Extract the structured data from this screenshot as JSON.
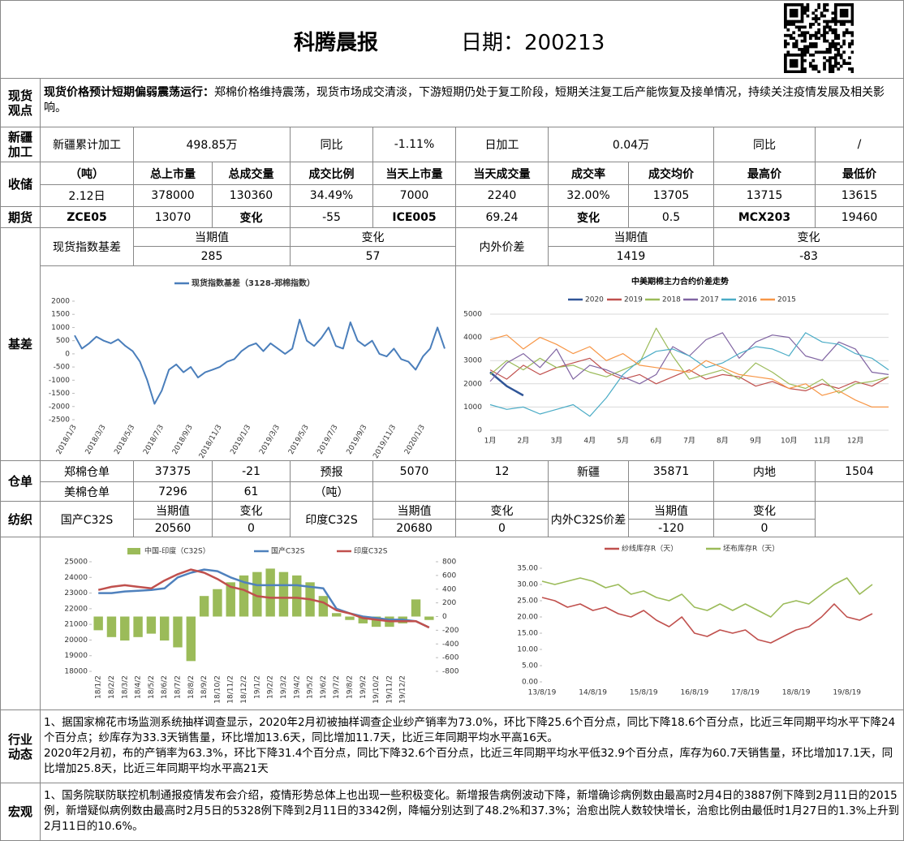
{
  "header": {
    "title": "科腾晨报",
    "date": "日期：200213"
  },
  "labels": [
    "现货观点",
    "新疆加工",
    "收储",
    "期货",
    "基差",
    "仓单",
    "纺织",
    "行业动态",
    "宏观"
  ],
  "views": {
    "heading": "现货价格预计短期偏弱震荡运行：",
    "text": "郑棉价格维持震荡，现货市场成交清淡，下游短期仍处于复工阶段，短期关注复工后产能恢复及接单情况，持续关注疫情发展及相关影响。"
  },
  "table": {
    "xinjiang": [
      "新疆累计加工",
      "498.85万",
      "同比",
      "-1.11%",
      "日加工",
      "0.04万",
      "同比",
      "/"
    ],
    "storage_header": [
      "（吨）",
      "总上市量",
      "总成交量",
      "成交比例",
      "当天上市量",
      "当天成交量",
      "成交率",
      "成交均价",
      "最高价",
      "最低价"
    ],
    "storage_row": [
      "2.12日",
      "378000",
      "130360",
      "34.49%",
      "7000",
      "2240",
      "32.00%",
      "13705",
      "13715",
      "13615"
    ],
    "futures": [
      "ZCE05",
      "13070",
      "变化",
      "-55",
      "ICE005",
      "69.24",
      "变化",
      "0.5",
      "MCX203",
      "19460"
    ],
    "spot_basis": [
      "现货指数基差",
      "当期值",
      "变化",
      "285",
      "57",
      "内外价差",
      "当期值",
      "变化",
      "1419",
      "-83"
    ],
    "warehouse_1": [
      "郑棉仓单",
      "37375",
      "-21",
      "预报",
      "5070",
      "12",
      "新疆",
      "35871",
      "内地",
      "1504"
    ],
    "warehouse_2": [
      "美棉仓单",
      "7296",
      "61",
      "（吨）"
    ],
    "textile": [
      "国产C32S",
      "当期值",
      "变化",
      "20560",
      "0",
      "印度C32S",
      "当期值",
      "变化",
      "20680",
      "0",
      "内外C32S价差",
      "当期值",
      "变化",
      "-120",
      "0"
    ]
  },
  "industry": [
    "1、据国家棉花市场监测系统抽样调查显示，2020年2月初被抽样调查企业纱产销率为73.0%，环比下降25.6个百分点，同比下降18.6个百分点，比近三年同期平均水平下降24个百分点；纱库存为33.3天销售量，环比增加13.6天，同比增加11.7天，比近三年同期平均水平高16天。",
    "2020年2月初，布的产销率为63.3%，环比下降31.4个百分点，同比下降32.6个百分点，比近三年同期平均水平低32.9个百分点，库存为60.7天销售量，环比增加17.1天，同比增加25.8天，比近三年同期平均水平高21天"
  ],
  "macro": "1、国务院联防联控机制通报疫情发布会介绍，疫情形势总体上也出现一些积极变化。新增报告病例波动下降，新增确诊病例数由最高时2月4日的3887例下降到2月11日的2015例，新增疑似病例数由最高时2月5日的5328例下降到2月11日的3342例，降幅分别达到了48.2%和37.3%；治愈出院人数较快增长，治愈比例由最低时1月27日的1.3%上升到2月11日的10.6%。",
  "chart_data": [
    {
      "type": "line",
      "categories": [
        "2018/1/3",
        null,
        null,
        null,
        "2018/3/3",
        null,
        null,
        null,
        "2018/5/3",
        null,
        null,
        null,
        "2018/7/3",
        null,
        null,
        null,
        "2018/9/3",
        null,
        null,
        null,
        "2018/11/3",
        null,
        null,
        null,
        "2019/1/3",
        null,
        null,
        null,
        "2019/3/3",
        null,
        null,
        null,
        "2019/5/3",
        null,
        null,
        null,
        "2019/7/3",
        null,
        null,
        null,
        "2019/9/3",
        null,
        null,
        null,
        "2019/11/3",
        null,
        null,
        null,
        "2020/1/3",
        null,
        null,
        null
      ],
      "series": [
        {
          "name": "现货指数基差（3128-郑棉指数）",
          "color": "#4a7ebb",
          "values": [
            700,
            200,
            400,
            650,
            500,
            400,
            550,
            300,
            100,
            -300,
            -1000,
            -1900,
            -1400,
            -600,
            -400,
            -700,
            -500,
            -900,
            -700,
            -600,
            -500,
            -300,
            -200,
            100,
            300,
            400,
            100,
            400,
            200,
            0,
            200,
            1300,
            500,
            300,
            600,
            1000,
            300,
            200,
            1200,
            500,
            300,
            500,
            0,
            -100,
            200,
            -200,
            -300,
            -600,
            -100,
            200,
            1000,
            200
          ]
        }
      ],
      "ylim": [
        -2500,
        2000
      ],
      "yticks": [
        2000,
        1500,
        1000,
        500,
        0,
        -500,
        -1000,
        -1500,
        -2000,
        -2500
      ],
      "grid": false
    },
    {
      "type": "line",
      "title": "中美期棉主力合约价差走势",
      "categories": [
        "1月",
        null,
        "2月",
        null,
        "3月",
        null,
        "4月",
        null,
        "5月",
        null,
        "6月",
        null,
        "7月",
        null,
        "8月",
        null,
        "9月",
        null,
        "10月",
        null,
        "11月",
        null,
        "12月",
        null,
        null
      ],
      "series": [
        {
          "name": "2020",
          "color": "#2f5597",
          "values": [
            2500,
            1900,
            1500,
            null,
            null,
            null,
            null,
            null,
            null,
            null,
            null,
            null,
            null,
            null,
            null,
            null,
            null,
            null,
            null,
            null,
            null,
            null,
            null,
            null,
            null
          ]
        },
        {
          "name": "2019",
          "color": "#c0504d",
          "values": [
            2600,
            2200,
            2800,
            2400,
            2700,
            2900,
            3100,
            2500,
            2200,
            2400,
            2000,
            2300,
            2600,
            2200,
            2400,
            2300,
            1900,
            2100,
            1800,
            1700,
            2000,
            1800,
            2100,
            1900,
            2300
          ]
        },
        {
          "name": "2018",
          "color": "#9bbb59",
          "values": [
            2400,
            3000,
            2600,
            3100,
            2700,
            2800,
            2500,
            2300,
            2600,
            2900,
            4400,
            3200,
            2200,
            2400,
            2600,
            2200,
            2900,
            2500,
            2000,
            1800,
            2200,
            1600,
            2000,
            2100,
            2300
          ]
        },
        {
          "name": "2017",
          "color": "#8064a2",
          "values": [
            2100,
            2900,
            3300,
            2700,
            3500,
            2200,
            2800,
            2600,
            2300,
            2000,
            2400,
            3600,
            3200,
            3900,
            4200,
            3100,
            3800,
            4100,
            4000,
            3200,
            3000,
            3800,
            3500,
            2500,
            2400
          ]
        },
        {
          "name": "2016",
          "color": "#4bacc6",
          "values": [
            1100,
            900,
            1000,
            700,
            900,
            1100,
            600,
            1400,
            2400,
            3000,
            3400,
            3500,
            3200,
            2700,
            2900,
            3300,
            3600,
            3500,
            3200,
            4200,
            3800,
            3700,
            3300,
            3100,
            2600
          ]
        },
        {
          "name": "2015",
          "color": "#f79646",
          "values": [
            3900,
            4100,
            3500,
            4000,
            3700,
            3300,
            3600,
            3000,
            3300,
            2800,
            2700,
            2600,
            2500,
            3000,
            2700,
            2400,
            2300,
            2200,
            1800,
            2000,
            1500,
            1700,
            1300,
            1000,
            1000
          ]
        }
      ],
      "ylim": [
        0,
        5000
      ],
      "yticks": [
        0,
        1000,
        2000,
        3000,
        4000,
        5000
      ],
      "grid": true
    },
    {
      "type": "combo",
      "categories": [
        "18/1/2",
        "18/2/2",
        "18/3/2",
        "18/4/2",
        "18/5/2",
        "18/6/2",
        "18/7/2",
        "18/8/2",
        "18/9/2",
        "18/10/2",
        "18/11/2",
        "18/12/2",
        "19/1/2",
        "19/2/2",
        "19/3/2",
        "19/4/2",
        "19/5/2",
        "19/6/2",
        "19/7/2",
        "19/8/2",
        "19/9/2",
        "19/10/2",
        "19/11/2",
        "19/12/2",
        null,
        null
      ],
      "series": [
        {
          "name": "中国-印度（C32S）",
          "type": "bar",
          "axis": "y2",
          "color": "#9bbb59",
          "values": [
            -200,
            -300,
            -350,
            -300,
            -250,
            -350,
            -450,
            -650,
            300,
            400,
            500,
            600,
            650,
            700,
            650,
            600,
            500,
            300,
            50,
            -50,
            -100,
            -150,
            -150,
            -100,
            250,
            -50
          ]
        },
        {
          "name": "国产C32S",
          "type": "line",
          "color": "#4f81bd",
          "values": [
            23000,
            23000,
            23100,
            23150,
            23200,
            23300,
            24000,
            24300,
            24500,
            24400,
            24000,
            23700,
            23500,
            23500,
            23500,
            23500,
            23400,
            23300,
            22000,
            21700,
            21500,
            21400,
            21300,
            21300,
            21200,
            20800
          ]
        },
        {
          "name": "印度C32S",
          "type": "line",
          "color": "#c0504d",
          "values": [
            23200,
            23400,
            23500,
            23400,
            23300,
            23800,
            24200,
            24500,
            24300,
            23900,
            23400,
            23200,
            22800,
            22700,
            22700,
            22700,
            22600,
            22400,
            21900,
            21700,
            21400,
            21300,
            21200,
            21200,
            21200,
            20800
          ]
        }
      ],
      "ylim": [
        18000,
        25000
      ],
      "yticks": [
        18000,
        19000,
        20000,
        21000,
        22000,
        23000,
        24000,
        25000
      ],
      "y2lim": [
        -800,
        800
      ],
      "y2ticks": [
        -800,
        -600,
        -400,
        -200,
        0,
        200,
        400,
        600,
        800
      ],
      "grid": false
    },
    {
      "type": "line",
      "categories": [
        "13/8/19",
        null,
        null,
        null,
        "14/8/19",
        null,
        null,
        null,
        "15/8/19",
        null,
        null,
        null,
        "16/8/19",
        null,
        null,
        null,
        "17/8/19",
        null,
        null,
        null,
        "18/8/19",
        null,
        null,
        null,
        "19/8/19",
        null,
        null
      ],
      "series": [
        {
          "name": "纱线库存R（天）",
          "color": "#c0504d",
          "values": [
            26,
            25,
            23,
            24,
            22,
            23,
            21,
            20,
            22,
            19,
            17,
            20,
            15,
            14,
            16,
            15,
            16,
            13,
            12,
            14,
            16,
            17,
            20,
            24,
            20,
            19,
            21
          ]
        },
        {
          "name": "坯布库存R（天）",
          "color": "#9bbb59",
          "values": [
            31,
            30,
            31,
            32,
            31,
            29,
            30,
            27,
            28,
            26,
            25,
            27,
            23,
            22,
            24,
            22,
            24,
            22,
            20,
            24,
            25,
            24,
            27,
            30,
            32,
            27,
            30
          ]
        }
      ],
      "ylim": [
        0,
        35
      ],
      "yticks": [
        {
          "value": 0,
          "label": "0.00"
        },
        {
          "value": 5,
          "label": "5.00"
        },
        {
          "value": 10,
          "label": "10.00"
        },
        {
          "value": 15,
          "label": "15.00"
        },
        {
          "value": 20,
          "label": "20.00"
        },
        {
          "value": 25,
          "label": "25.00"
        },
        {
          "value": 30,
          "label": "30.00"
        },
        {
          "value": 35,
          "label": "35.00"
        }
      ],
      "grid": false
    }
  ]
}
